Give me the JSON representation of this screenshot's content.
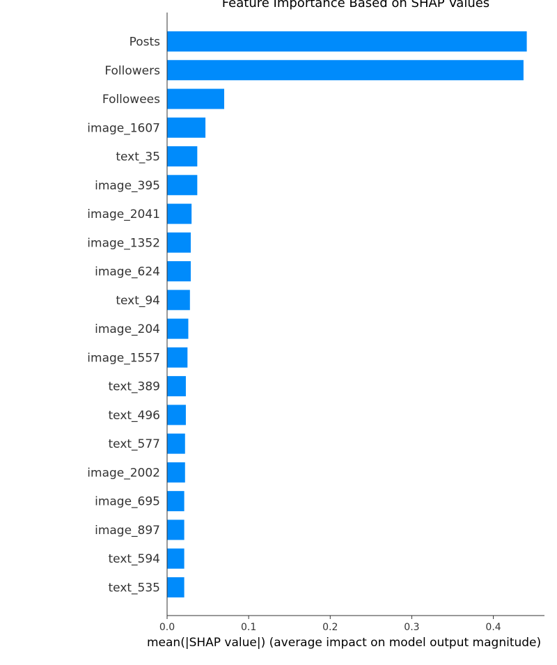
{
  "chart_data": {
    "type": "bar",
    "orientation": "horizontal",
    "title": "Feature Importance Based on SHAP Values",
    "xlabel": "mean(|SHAP value|) (average impact on model output magnitude)",
    "ylabel": "",
    "xlim": [
      0,
      0.465
    ],
    "xticks": [
      "0.0",
      "0.1",
      "0.2",
      "0.3",
      "0.4"
    ],
    "categories": [
      "Posts",
      "Followers",
      "Followees",
      "image_1607",
      "text_35",
      "image_395",
      "image_2041",
      "image_1352",
      "image_624",
      "text_94",
      "image_204",
      "image_1557",
      "text_389",
      "text_496",
      "text_577",
      "image_2002",
      "image_695",
      "image_897",
      "text_594",
      "text_535"
    ],
    "values": [
      0.441,
      0.437,
      0.07,
      0.047,
      0.037,
      0.037,
      0.03,
      0.029,
      0.029,
      0.028,
      0.026,
      0.025,
      0.023,
      0.023,
      0.022,
      0.022,
      0.021,
      0.021,
      0.021,
      0.021
    ],
    "bar_color": "#008bfb",
    "grid": false,
    "legend": "none"
  }
}
